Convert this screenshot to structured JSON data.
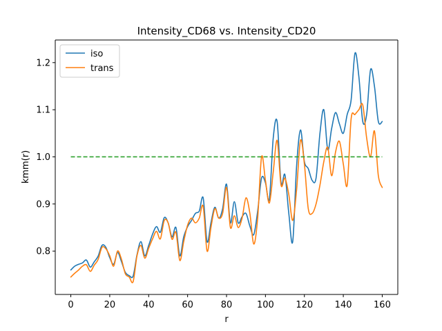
{
  "chart_data": {
    "type": "line",
    "title": "Intensity_CD68 vs. Intensity_CD20",
    "xlabel": "r",
    "ylabel": "kmm(r)",
    "xlim": [
      -8,
      168
    ],
    "ylim": [
      0.708,
      1.248
    ],
    "xticks": [
      0,
      20,
      40,
      60,
      80,
      100,
      120,
      140,
      160
    ],
    "yticks": [
      0.8,
      0.9,
      1.0,
      1.1,
      1.2
    ],
    "ytick_labels": [
      "0.8",
      "0.9",
      "1.0",
      "1.1",
      "1.2"
    ],
    "grid": false,
    "legend_position": "top-left",
    "series": [
      {
        "name": "iso",
        "color": "#1f77b4",
        "style": "solid",
        "x": [
          0,
          2,
          4,
          6,
          8,
          10,
          12,
          14,
          16,
          18,
          20,
          22,
          24,
          26,
          28,
          30,
          32,
          34,
          36,
          38,
          40,
          42,
          44,
          46,
          48,
          50,
          52,
          54,
          56,
          58,
          60,
          62,
          64,
          66,
          68,
          70,
          72,
          74,
          76,
          78,
          80,
          82,
          84,
          86,
          88,
          90,
          92,
          94,
          96,
          98,
          100,
          102,
          104,
          106,
          108,
          110,
          112,
          114,
          116,
          118,
          120,
          122,
          124,
          126,
          128,
          130,
          132,
          134,
          136,
          138,
          140,
          142,
          144,
          146,
          148,
          150,
          152,
          154,
          156,
          158,
          160
        ],
        "y": [
          0.76,
          0.768,
          0.772,
          0.775,
          0.781,
          0.766,
          0.777,
          0.789,
          0.812,
          0.808,
          0.786,
          0.772,
          0.797,
          0.778,
          0.755,
          0.748,
          0.747,
          0.792,
          0.82,
          0.79,
          0.812,
          0.836,
          0.852,
          0.84,
          0.871,
          0.86,
          0.83,
          0.85,
          0.79,
          0.83,
          0.852,
          0.865,
          0.88,
          0.885,
          0.913,
          0.82,
          0.86,
          0.893,
          0.87,
          0.89,
          0.942,
          0.86,
          0.905,
          0.86,
          0.873,
          0.88,
          0.853,
          0.835,
          0.885,
          0.955,
          0.945,
          0.91,
          1.04,
          1.075,
          0.945,
          0.962,
          0.88,
          0.82,
          0.98,
          1.057,
          0.99,
          0.975,
          0.95,
          0.955,
          1.05,
          1.1,
          1.015,
          1.06,
          1.094,
          1.07,
          1.05,
          1.09,
          1.12,
          1.22,
          1.17,
          1.075,
          1.09,
          1.185,
          1.15,
          1.075,
          1.075
        ]
      },
      {
        "name": "trans",
        "color": "#ff7f0e",
        "style": "solid",
        "x": [
          0,
          2,
          4,
          6,
          8,
          10,
          12,
          14,
          16,
          18,
          20,
          22,
          24,
          26,
          28,
          30,
          32,
          34,
          36,
          38,
          40,
          42,
          44,
          46,
          48,
          50,
          52,
          54,
          56,
          58,
          60,
          62,
          64,
          66,
          68,
          70,
          72,
          74,
          76,
          78,
          80,
          82,
          84,
          86,
          88,
          90,
          92,
          94,
          96,
          98,
          100,
          102,
          104,
          106,
          108,
          110,
          112,
          114,
          116,
          118,
          120,
          122,
          124,
          126,
          128,
          130,
          132,
          134,
          136,
          138,
          140,
          142,
          144,
          146,
          148,
          150,
          152,
          154,
          156,
          158,
          160
        ],
        "y": [
          0.745,
          0.753,
          0.76,
          0.768,
          0.771,
          0.757,
          0.77,
          0.782,
          0.808,
          0.805,
          0.79,
          0.768,
          0.8,
          0.783,
          0.752,
          0.745,
          0.735,
          0.79,
          0.812,
          0.785,
          0.806,
          0.826,
          0.842,
          0.826,
          0.865,
          0.86,
          0.825,
          0.84,
          0.78,
          0.82,
          0.855,
          0.87,
          0.86,
          0.87,
          0.895,
          0.8,
          0.85,
          0.89,
          0.87,
          0.88,
          0.935,
          0.85,
          0.875,
          0.85,
          0.87,
          0.913,
          0.88,
          0.815,
          0.87,
          1.0,
          0.95,
          0.902,
          0.968,
          1.035,
          0.94,
          0.955,
          0.92,
          0.865,
          0.93,
          1.035,
          0.985,
          0.89,
          0.88,
          0.9,
          0.94,
          0.99,
          1.02,
          0.96,
          1.01,
          1.033,
          0.985,
          0.94,
          1.08,
          1.09,
          1.1,
          1.11,
          1.04,
          1.0,
          1.055,
          0.96,
          0.935
        ]
      },
      {
        "name": "",
        "color": "#2ca02c",
        "style": "dashed",
        "x": [
          0,
          160
        ],
        "y": [
          1.0,
          1.0
        ]
      }
    ]
  }
}
